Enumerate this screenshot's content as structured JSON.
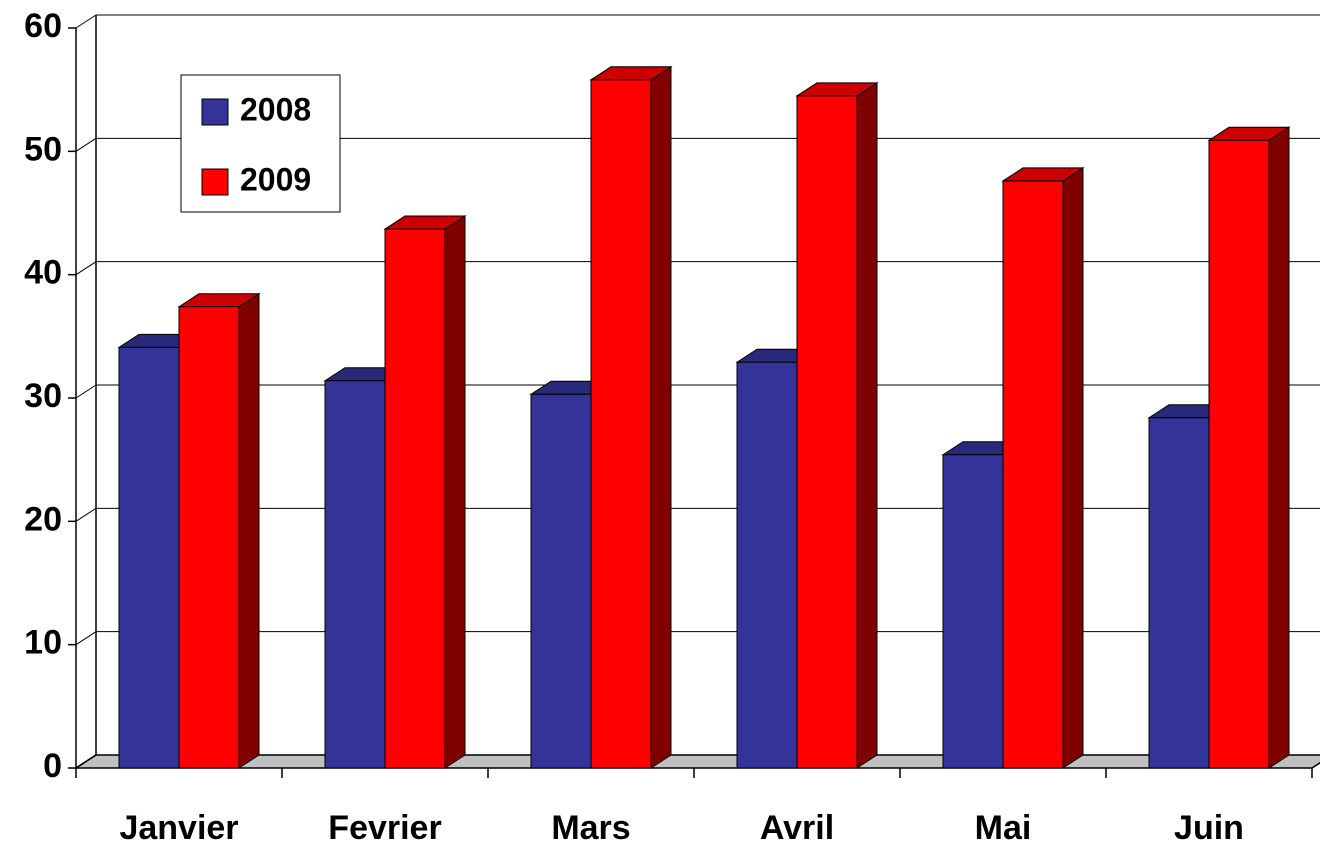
{
  "chart_data": {
    "type": "bar3d",
    "categories": [
      "Janvier",
      "Fevrier",
      "Mars",
      "Avril",
      "Mai",
      "Juin"
    ],
    "series": [
      {
        "name": "2008",
        "color": "#333399",
        "values": [
          34.1,
          31.4,
          30.3,
          32.9,
          25.4,
          28.4
        ]
      },
      {
        "name": "2009",
        "color": "#ff0000",
        "values": [
          37.4,
          43.7,
          55.8,
          54.5,
          47.6,
          50.9
        ]
      }
    ],
    "ylim": [
      0,
      60
    ],
    "yticks": [
      0,
      10,
      20,
      30,
      40,
      50,
      60
    ],
    "grid": true,
    "legend": "top-left"
  }
}
